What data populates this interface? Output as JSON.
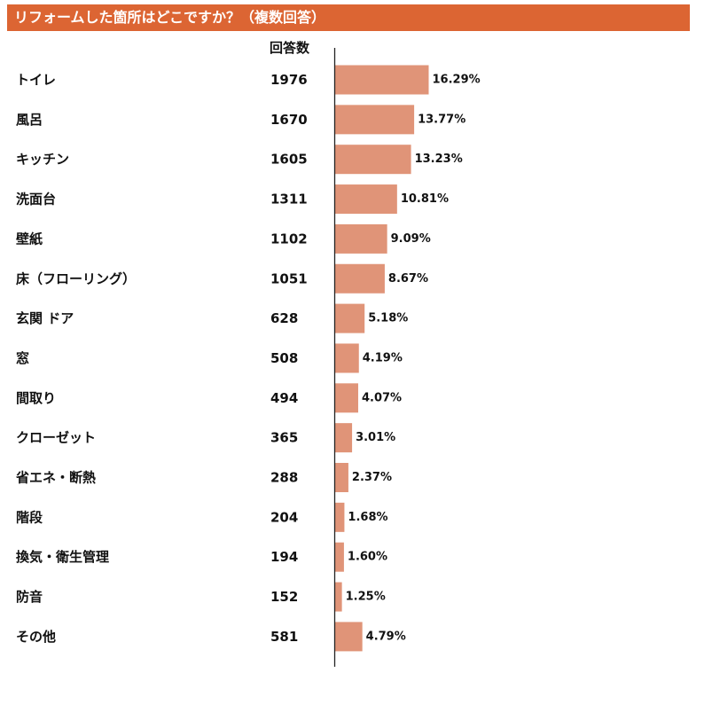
{
  "title": "リフォームした箇所はどこですか？（複数回答）",
  "count_header": "回答数",
  "colors": {
    "title_bg": "#dc6533",
    "bar": "#e09478",
    "axis": "#222222",
    "text": "#111111"
  },
  "chart_data": {
    "type": "bar",
    "orientation": "horizontal",
    "title": "リフォームした箇所はどこですか？（複数回答）",
    "categories": [
      "トイレ",
      "風呂",
      "キッチン",
      "洗面台",
      "壁紙",
      "床（フローリング）",
      "玄関 ドア",
      "窓",
      "間取り",
      "クローゼット",
      "省エネ・断熱",
      "階段",
      "換気・衛生管理",
      "防音",
      "その他"
    ],
    "counts": [
      1976,
      1670,
      1605,
      1311,
      1102,
      1051,
      628,
      508,
      494,
      365,
      288,
      204,
      194,
      152,
      581
    ],
    "values": [
      16.29,
      13.77,
      13.23,
      10.81,
      9.09,
      8.67,
      5.18,
      4.19,
      4.07,
      3.01,
      2.37,
      1.68,
      1.6,
      1.25,
      4.79
    ],
    "value_labels": [
      "16.29%",
      "13.77%",
      "13.23%",
      "10.81%",
      "9.09%",
      "8.67%",
      "5.18%",
      "4.19%",
      "4.07%",
      "3.01%",
      "2.37%",
      "1.68%",
      "1.60%",
      "1.25%",
      "4.79%"
    ],
    "xlim": [
      0,
      17.5
    ],
    "grid": false,
    "legend": "none"
  }
}
